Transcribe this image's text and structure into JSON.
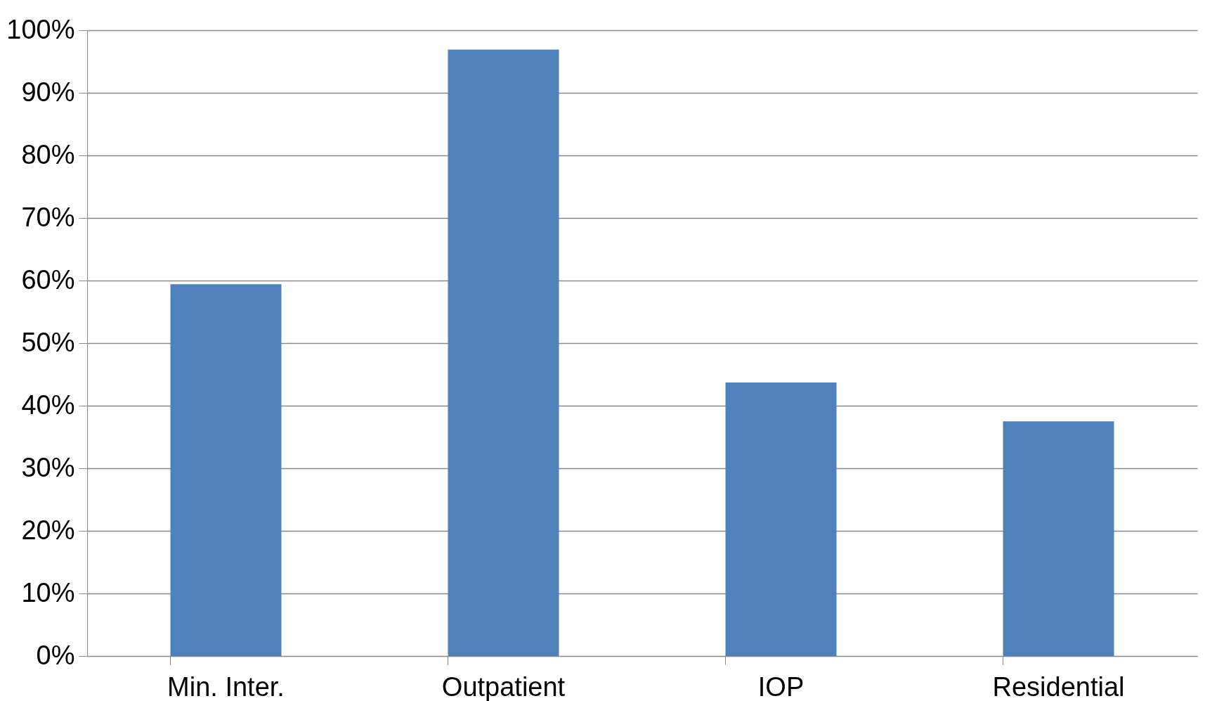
{
  "chart_data": {
    "type": "bar",
    "categories": [
      "Min. Inter.",
      "Outpatient",
      "IOP",
      "Residential"
    ],
    "values": [
      59.4,
      96.9,
      43.7,
      37.5
    ],
    "color": "#4f81bd",
    "ylim": [
      0,
      100
    ],
    "yticks": [
      {
        "value": 0,
        "label": "0%"
      },
      {
        "value": 10,
        "label": "10%"
      },
      {
        "value": 20,
        "label": "20%"
      },
      {
        "value": 30,
        "label": "30%"
      },
      {
        "value": 40,
        "label": "40%"
      },
      {
        "value": 50,
        "label": "50%"
      },
      {
        "value": 60,
        "label": "60%"
      },
      {
        "value": 70,
        "label": "70%"
      },
      {
        "value": 80,
        "label": "80%"
      },
      {
        "value": 90,
        "label": "90%"
      },
      {
        "value": 100,
        "label": "100%"
      }
    ],
    "grid": "y"
  }
}
